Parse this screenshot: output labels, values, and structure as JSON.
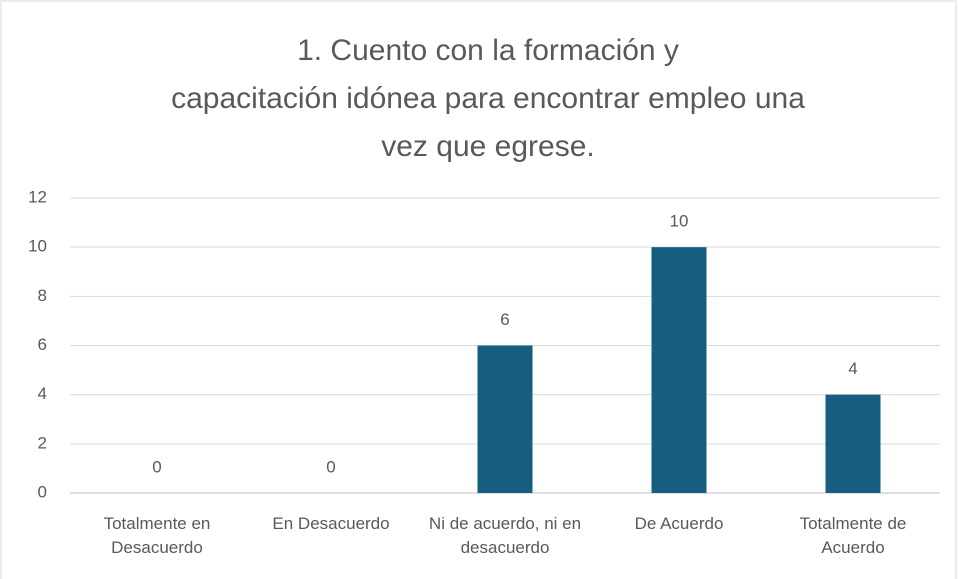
{
  "chart_data": {
    "type": "bar",
    "title": [
      "1. Cuento con la formación y",
      "capacitación idónea para encontrar empleo una",
      "vez que egrese."
    ],
    "categories": [
      "Totalmente en Desacuerdo",
      "En Desacuerdo",
      "Ni de acuerdo, ni en desacuerdo",
      "De Acuerdo",
      "Totalmente de Acuerdo"
    ],
    "values": [
      0,
      0,
      6,
      10,
      4
    ],
    "color": "#155e7f",
    "ylim": [
      0,
      12
    ],
    "yticks": [
      0,
      2,
      4,
      6,
      8,
      10,
      12
    ],
    "grid": true
  }
}
